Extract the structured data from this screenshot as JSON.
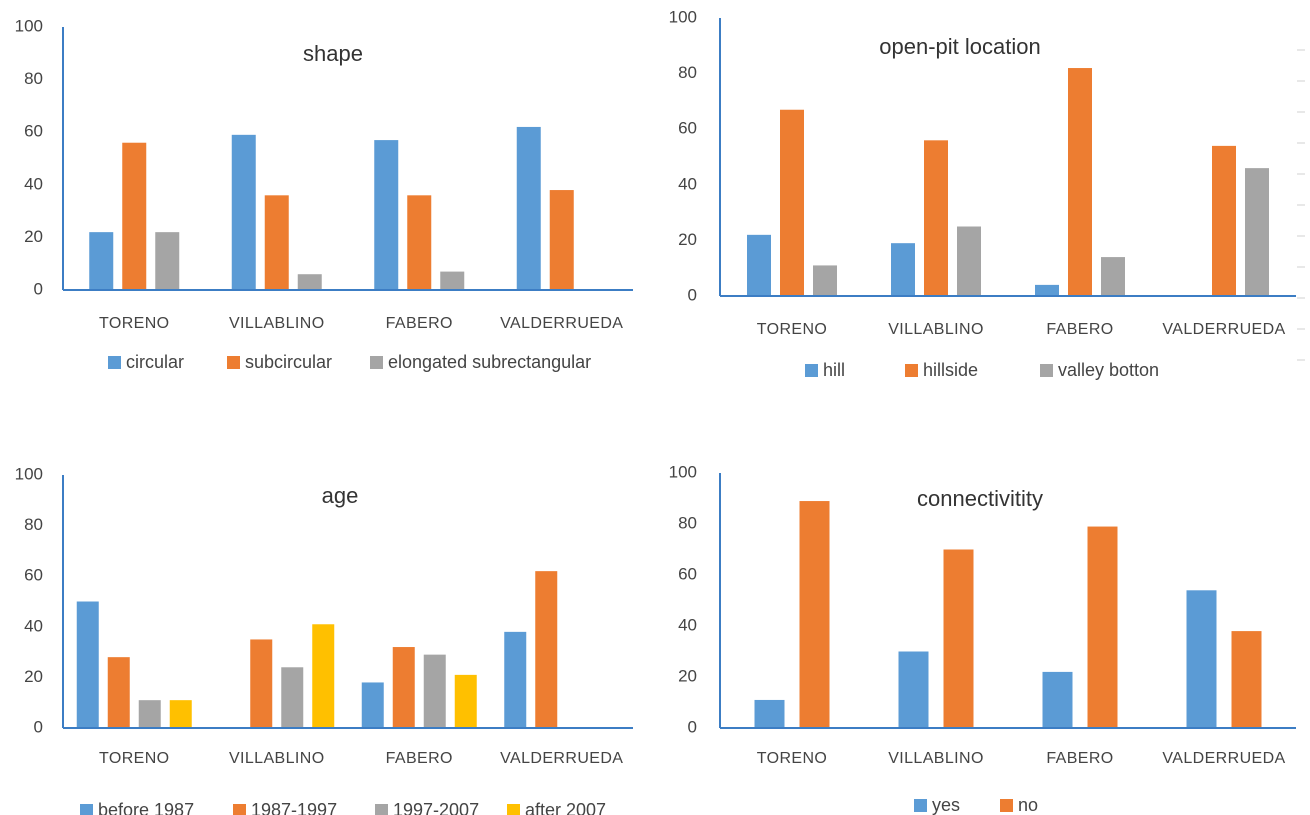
{
  "colors": {
    "blue": "#5B9BD5",
    "orange": "#ED7D31",
    "gray": "#A5A5A5",
    "yellow": "#FFC000",
    "axis": "#3C7DC4",
    "text": "#444444"
  },
  "chart_data": [
    {
      "type": "bar",
      "title": "shape",
      "ylim": [
        0,
        100
      ],
      "yticks": [
        "0",
        "20",
        "40",
        "60",
        "80",
        "100"
      ],
      "categories": [
        "TORENO",
        "VILLABLINO",
        "FABERO",
        "VALDERRUEDA"
      ],
      "series": [
        {
          "name": "circular",
          "color": "#5B9BD5",
          "values": [
            22,
            59,
            57,
            62
          ]
        },
        {
          "name": "subcircular",
          "color": "#ED7D31",
          "values": [
            56,
            36,
            36,
            38
          ]
        },
        {
          "name": "elongated subrectangular",
          "color": "#A5A5A5",
          "values": [
            22,
            6,
            7,
            0
          ]
        }
      ],
      "legend": "bottom",
      "grid": false
    },
    {
      "type": "bar",
      "title": "open-pit location",
      "ylim": [
        0,
        100
      ],
      "yticks": [
        "0",
        "20",
        "40",
        "60",
        "80",
        "100"
      ],
      "categories": [
        "TORENO",
        "VILLABLINO",
        "FABERO",
        "VALDERRUEDA"
      ],
      "series": [
        {
          "name": "hill",
          "color": "#5B9BD5",
          "values": [
            22,
            19,
            4,
            0
          ]
        },
        {
          "name": "hillside",
          "color": "#ED7D31",
          "values": [
            67,
            56,
            82,
            54
          ]
        },
        {
          "name": "valley botton",
          "color": "#A5A5A5",
          "values": [
            11,
            25,
            14,
            46
          ]
        }
      ],
      "legend": "bottom",
      "grid": false
    },
    {
      "type": "bar",
      "title": "age",
      "ylim": [
        0,
        100
      ],
      "yticks": [
        "0",
        "20",
        "40",
        "60",
        "80",
        "100"
      ],
      "categories": [
        "TORENO",
        "VILLABLINO",
        "FABERO",
        "VALDERRUEDA"
      ],
      "series": [
        {
          "name": "before 1987",
          "color": "#5B9BD5",
          "values": [
            50,
            0,
            18,
            38
          ]
        },
        {
          "name": "1987-1997",
          "color": "#ED7D31",
          "values": [
            28,
            35,
            32,
            62
          ]
        },
        {
          "name": "1997-2007",
          "color": "#A5A5A5",
          "values": [
            11,
            24,
            29,
            0
          ]
        },
        {
          "name": "after 2007",
          "color": "#FFC000",
          "values": [
            11,
            41,
            21,
            0
          ]
        }
      ],
      "legend": "bottom",
      "grid": false
    },
    {
      "type": "bar",
      "title": "connectivitity",
      "ylim": [
        0,
        100
      ],
      "yticks": [
        "0",
        "20",
        "40",
        "60",
        "80",
        "100"
      ],
      "categories": [
        "TORENO",
        "VILLABLINO",
        "FABERO",
        "VALDERRUEDA"
      ],
      "series": [
        {
          "name": "yes",
          "color": "#5B9BD5",
          "values": [
            11,
            30,
            22,
            54
          ]
        },
        {
          "name": "no",
          "color": "#ED7D31",
          "values": [
            89,
            70,
            79,
            38
          ]
        }
      ],
      "legend": "bottom",
      "grid": false
    }
  ]
}
